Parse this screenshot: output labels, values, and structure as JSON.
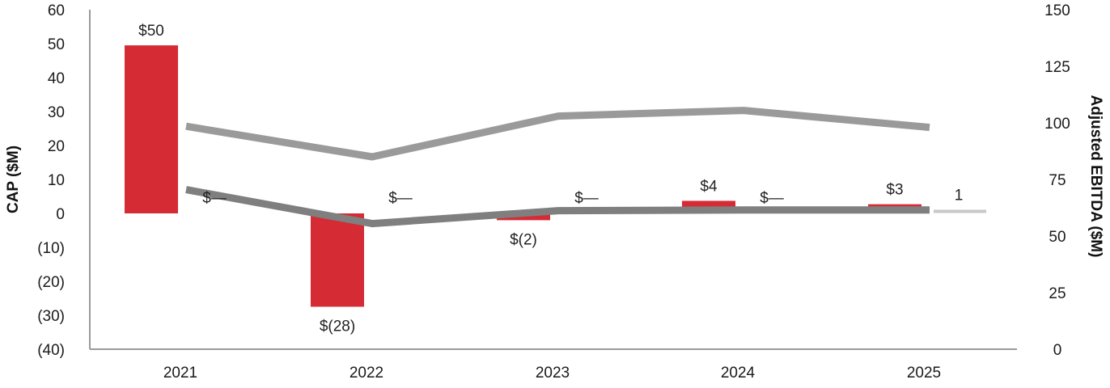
{
  "chart_data": {
    "type": "bar",
    "categories": [
      "2021",
      "2022",
      "2023",
      "2024",
      "2025"
    ],
    "ylabel": "CAP ($M)",
    "y2label": "Adjusted EBITDA ($M)",
    "ylim": [
      -40,
      60
    ],
    "y2lim": [
      0,
      150
    ],
    "y_ticks": [
      "60",
      "50",
      "40",
      "30",
      "20",
      "10",
      "0",
      "(10)",
      "(20)",
      "(30)",
      "(40)"
    ],
    "y2_ticks": [
      "150",
      "125",
      "100",
      "75",
      "50",
      "25",
      "0"
    ],
    "bars": {
      "values": [
        49.5,
        -27.5,
        -2,
        3.7,
        2.7
      ],
      "labels": [
        "$50",
        "$(28)",
        "$(2)",
        "$4",
        "$3"
      ],
      "color": "#d52b35"
    },
    "line_upper": {
      "axis": "right",
      "values": [
        98.5,
        85,
        103,
        105.5,
        98
      ],
      "color": "#9a9a9a"
    },
    "line_lower": {
      "axis": "left",
      "values": [
        7,
        -3,
        0.8,
        1,
        1
      ],
      "color": "#7f7f7f"
    },
    "line_small": {
      "axis": "left",
      "values": [
        null,
        null,
        null,
        null,
        0.6
      ],
      "label": "1",
      "color": "#c8c8c8"
    },
    "extra_labels": [
      "$—",
      "$—",
      "$—",
      "$—"
    ]
  }
}
